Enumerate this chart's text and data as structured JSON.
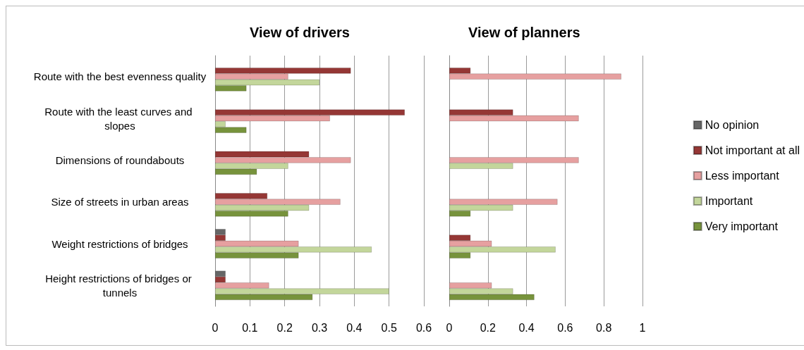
{
  "chart_data": [
    {
      "type": "bar",
      "orientation": "horizontal",
      "title": "View of drivers",
      "categories": [
        "Route with the best evenness quality",
        "Route with the least curves and slopes",
        "Dimensions of roundabouts",
        "Size of streets in urban areas",
        "Weight restrictions of bridges",
        "Height restrictions of bridges or tunnels"
      ],
      "series": [
        {
          "color": "#666666",
          "values": [
            null,
            null,
            null,
            null,
            0.03,
            0.03
          ]
        },
        {
          "color": "#953735",
          "values": [
            0.39,
            0.545,
            0.27,
            0.15,
            0.03,
            0.03
          ]
        },
        {
          "color": "#e6a0a0",
          "values": [
            0.21,
            0.33,
            0.39,
            0.36,
            0.24,
            0.155
          ]
        },
        {
          "color": "#c3d69b",
          "values": [
            0.3,
            0.03,
            0.21,
            0.27,
            0.45,
            0.5
          ]
        },
        {
          "color": "#77933c",
          "values": [
            0.09,
            0.09,
            0.12,
            0.21,
            0.24,
            0.28
          ]
        }
      ],
      "xlim": [
        0,
        0.6
      ],
      "xticks": [
        0,
        0.1,
        0.2,
        0.3,
        0.4,
        0.5,
        0.6
      ],
      "grid": "x"
    },
    {
      "type": "bar",
      "orientation": "horizontal",
      "title": "View of planners",
      "categories": [
        null,
        null,
        null,
        null,
        null,
        null
      ],
      "series": [
        {
          "name": "No opinion",
          "color": "#666666",
          "values": [
            null,
            null,
            null,
            null,
            null,
            null
          ]
        },
        {
          "name": "Not important at all",
          "color": "#953735",
          "values": [
            0.11,
            0.33,
            null,
            null,
            0.11,
            null
          ]
        },
        {
          "name": "Less important",
          "color": "#e6a0a0",
          "values": [
            0.89,
            0.67,
            0.67,
            0.56,
            0.22,
            0.22
          ]
        },
        {
          "name": "Important",
          "color": "#c3d69b",
          "values": [
            null,
            null,
            0.33,
            0.33,
            0.55,
            0.33
          ]
        },
        {
          "name": "Very important",
          "color": "#77933c",
          "values": [
            null,
            null,
            null,
            0.11,
            0.11,
            0.44
          ]
        }
      ],
      "xlim": [
        0,
        1
      ],
      "xticks": [
        0,
        0.2,
        0.4,
        0.6,
        0.8,
        1
      ],
      "grid": "x",
      "tick_labels": "x",
      "legend": "right"
    }
  ]
}
